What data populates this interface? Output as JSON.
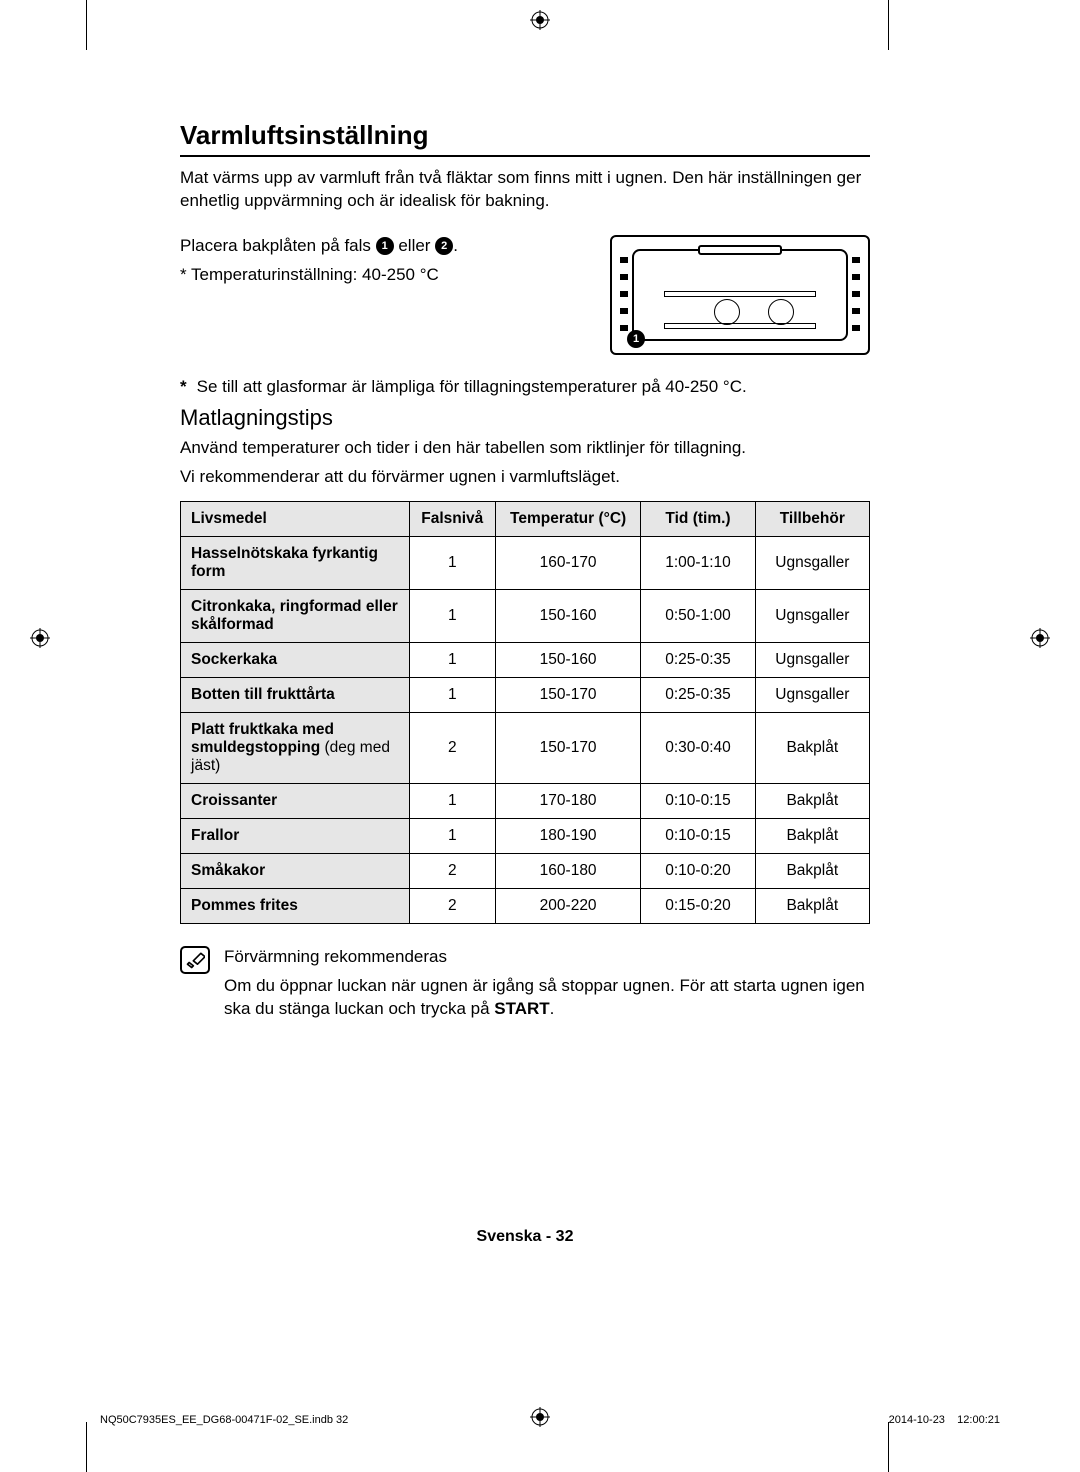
{
  "heading": "Varmluftsinställning",
  "intro": "Mat värms upp av varmluft från två fläktar som finns mitt i ugnen. Den här inställningen ger enhetlig uppvärmning och är idealisk för bakning.",
  "placement_prefix": "Placera bakplåten på fals ",
  "placement_mid": " eller ",
  "num1": "1",
  "num2": "2",
  "placement_suffix": ".",
  "temp_note": "* Temperaturinställning: 40-250 °C",
  "star": "*",
  "glass_note": "Se till att glasformar är lämpliga för tillagningstemperaturer på 40-250 °C.",
  "subheading": "Matlagningstips",
  "sub_p1": "Använd temperaturer och tider i den här tabellen som riktlinjer för tillagning.",
  "sub_p2": "Vi rekommenderar att du förvärmer ugnen i varmluftsläget.",
  "table": {
    "headers": [
      "Livsmedel",
      "Falsnivå",
      "Temperatur (°C)",
      "Tid (tim.)",
      "Tillbehör"
    ],
    "rows": [
      {
        "food_bold": "Hasselnötskaka fyrkantig form",
        "food_sub": "",
        "level": "1",
        "temp": "160-170",
        "time": "1:00-1:10",
        "acc": "Ugnsgaller"
      },
      {
        "food_bold": "Citronkaka, ringformad eller skålformad",
        "food_sub": "",
        "level": "1",
        "temp": "150-160",
        "time": "0:50-1:00",
        "acc": "Ugnsgaller"
      },
      {
        "food_bold": "Sockerkaka",
        "food_sub": "",
        "level": "1",
        "temp": "150-160",
        "time": "0:25-0:35",
        "acc": "Ugnsgaller"
      },
      {
        "food_bold": "Botten till frukttårta",
        "food_sub": "",
        "level": "1",
        "temp": "150-170",
        "time": "0:25-0:35",
        "acc": "Ugnsgaller"
      },
      {
        "food_bold": "Platt fruktkaka med smuldegstopping",
        "food_sub": " (deg med jäst)",
        "level": "2",
        "temp": "150-170",
        "time": "0:30-0:40",
        "acc": "Bakplåt"
      },
      {
        "food_bold": "Croissanter",
        "food_sub": "",
        "level": "1",
        "temp": "170-180",
        "time": "0:10-0:15",
        "acc": "Bakplåt"
      },
      {
        "food_bold": "Frallor",
        "food_sub": "",
        "level": "1",
        "temp": "180-190",
        "time": "0:10-0:15",
        "acc": "Bakplåt"
      },
      {
        "food_bold": "Småkakor",
        "food_sub": "",
        "level": "2",
        "temp": "160-180",
        "time": "0:10-0:20",
        "acc": "Bakplåt"
      },
      {
        "food_bold": "Pommes frites",
        "food_sub": "",
        "level": "2",
        "temp": "200-220",
        "time": "0:15-0:20",
        "acc": "Bakplåt"
      }
    ]
  },
  "note1": "Förvärmning rekommenderas",
  "note2_a": "Om du öppnar luckan när ugnen är igång så stoppar ugnen. För att starta ugnen igen ska du stänga luckan och trycka på ",
  "note2_b": "START",
  "note2_c": ".",
  "page_lang": "Svenska - 32",
  "print_file": "NQ50C7935ES_EE_DG68-00471F-02_SE.indb   32",
  "print_date": "2014-10-23",
  "print_time": "12:00:21",
  "oven_marker": "1"
}
